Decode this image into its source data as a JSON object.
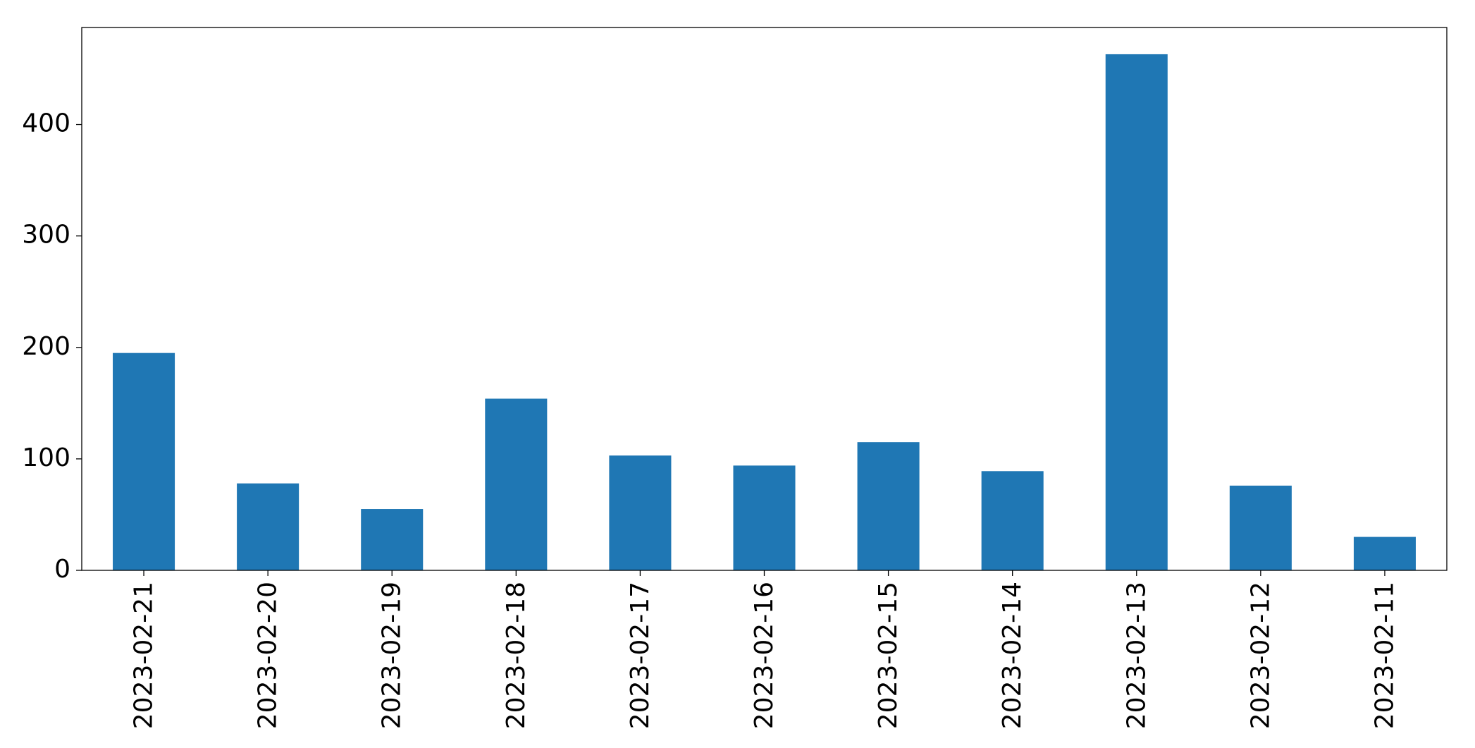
{
  "chart_data": {
    "type": "bar",
    "categories": [
      "2023-02-21",
      "2023-02-20",
      "2023-02-19",
      "2023-02-18",
      "2023-02-17",
      "2023-02-16",
      "2023-02-15",
      "2023-02-14",
      "2023-02-13",
      "2023-02-12",
      "2023-02-11"
    ],
    "values": [
      195,
      78,
      55,
      154,
      103,
      94,
      115,
      89,
      463,
      76,
      30
    ],
    "color": "#1f77b4",
    "ylim": [
      0,
      487
    ],
    "yticks": [
      0,
      100,
      200,
      300,
      400
    ],
    "grid": false
  }
}
